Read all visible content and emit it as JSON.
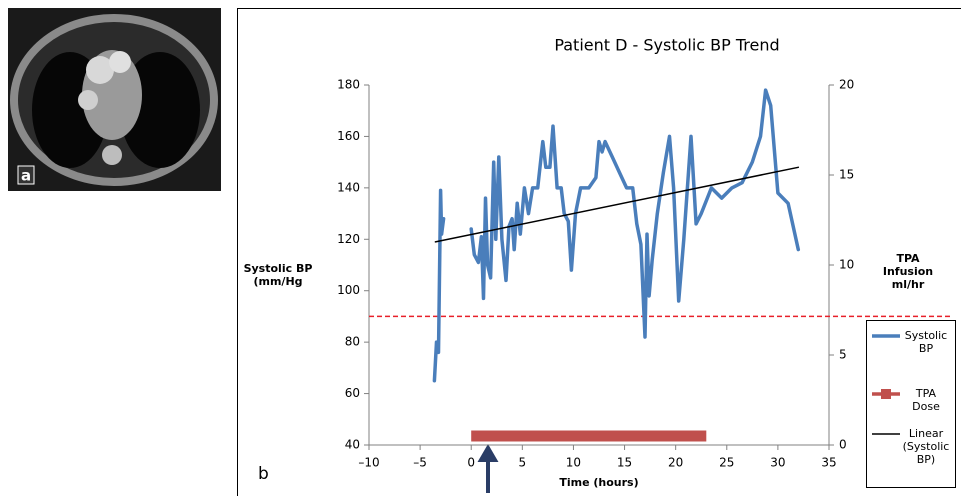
{
  "image_label": "a",
  "chart_data": {
    "type": "line",
    "title": "Patient D - Systolic BP Trend",
    "panel_label": "b",
    "xlabel": "Time (hours)",
    "ylabel": "Systolic  BP (mm/Hg",
    "y2label": "TPA Infusion ml/hr",
    "xlim": [
      -10,
      35
    ],
    "xticks": [
      {
        "value": -10,
        "label": "–10"
      },
      {
        "value": -5,
        "label": "–5"
      },
      0,
      5,
      10,
      15,
      20,
      25,
      30,
      35
    ],
    "ylim": [
      40,
      180
    ],
    "yticks": [
      40,
      60,
      80,
      100,
      120,
      140,
      160,
      180
    ],
    "y2lim": [
      0,
      20
    ],
    "y2ticks": [
      0,
      5,
      10,
      15,
      20
    ],
    "reference_line": {
      "value": 90,
      "color": "#e8202a"
    },
    "series": [
      {
        "name": "Systolic BP",
        "color": "#4a7ebb",
        "x": [
          -3.6,
          -3.4,
          -3.2,
          -3.0,
          -2.9,
          -2.7,
          -1.4,
          0,
          0.3,
          0.7,
          1.0,
          1.2,
          1.4,
          1.6,
          1.9,
          2.2,
          2.4,
          2.7,
          3.0,
          3.4,
          3.7,
          4.0,
          4.2,
          4.5,
          4.8,
          5.2,
          5.6,
          6.0,
          6.5,
          7.0,
          7.3,
          7.7,
          8.0,
          8.4,
          8.8,
          9.1,
          9.5,
          9.8,
          10.2,
          10.7,
          11.5,
          12.2,
          12.5,
          12.8,
          13.1,
          13.8,
          14.5,
          15.2,
          15.8,
          16.2,
          16.6,
          17.0,
          17.2,
          17.4,
          17.7,
          18.2,
          18.8,
          19.4,
          19.8,
          20.3,
          20.8,
          21.5,
          22.0,
          22.5,
          23.5,
          24.5,
          25.5,
          26.5,
          27.5,
          28.3,
          28.8,
          29.3,
          30.0,
          31.0,
          32.0
        ],
        "values": [
          65,
          80,
          76,
          139,
          122,
          128,
          null,
          124,
          114,
          111,
          121,
          97,
          136,
          110,
          105,
          150,
          120,
          152,
          120,
          104,
          125,
          128,
          116,
          134,
          122,
          140,
          130,
          140,
          140,
          158,
          148,
          148,
          164,
          140,
          140,
          130,
          127,
          108,
          130,
          140,
          140,
          144,
          158,
          154,
          158,
          152,
          146,
          140,
          140,
          126,
          118,
          82,
          122,
          98,
          112,
          130,
          146,
          160,
          140,
          96,
          120,
          160,
          126,
          130,
          140,
          136,
          140,
          142,
          150,
          160,
          178,
          172,
          138,
          134,
          116
        ]
      },
      {
        "name": "TPA Dose",
        "color": "#c0504d",
        "axis": "y2",
        "x": [
          0,
          23
        ],
        "values": [
          0.5,
          0.5
        ]
      },
      {
        "name": "Linear (Systolic BP)",
        "color": "#000000",
        "x": [
          -3.5,
          32
        ],
        "values": [
          119,
          148
        ]
      }
    ]
  }
}
